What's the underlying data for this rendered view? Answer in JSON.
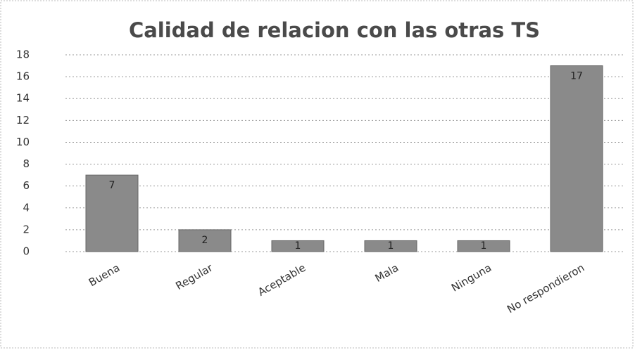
{
  "chart_data": {
    "type": "bar",
    "title": "Calidad de relacion con las otras TS",
    "categories": [
      "Buena",
      "Regular",
      "Aceptable",
      "Mala",
      "Ninguna",
      "No respondieron"
    ],
    "values": [
      7,
      2,
      1,
      1,
      1,
      17
    ],
    "color": "#8a8a8a",
    "ylim": [
      0,
      18
    ],
    "yticks": [
      0,
      2,
      4,
      6,
      8,
      10,
      12,
      14,
      16,
      18
    ],
    "grid": true
  }
}
